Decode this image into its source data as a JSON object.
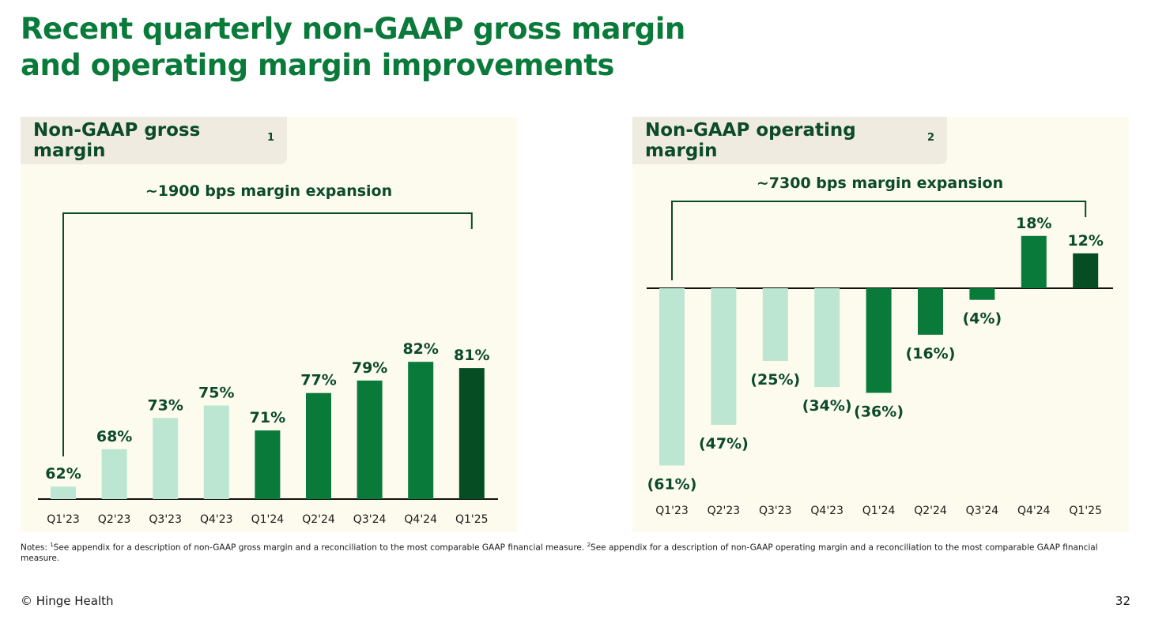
{
  "slide": {
    "title_line1": "Recent quarterly non-GAAP gross margin",
    "title_line2": "and operating margin improvements",
    "notes_prefix": "Notes: ",
    "note1_marker": "1",
    "note1_text": "See appendix for a description of non-GAAP gross margin and a reconciliation to the most comparable GAAP financial measure. ",
    "note2_marker": "2",
    "note2_text": "See appendix for a description of non-GAAP operating margin and a reconciliation to the most comparable GAAP financial measure.",
    "footer_brand": "© Hinge Health",
    "page_number": "32"
  },
  "colors": {
    "title": "#0a7a3a",
    "light": "#bde6d2",
    "medium": "#0a7a3a",
    "dark": "#064d24",
    "label": "#0b4a2a",
    "panel_bg": "#fdfbee"
  },
  "chart_data": [
    {
      "type": "bar",
      "title": "Non-GAAP gross margin",
      "title_sup": "1",
      "annotation": "~1900 bps margin expansion",
      "categories": [
        "Q1'23",
        "Q2'23",
        "Q3'23",
        "Q4'23",
        "Q1'24",
        "Q2'24",
        "Q3'24",
        "Q4'24",
        "Q1'25"
      ],
      "values": [
        62,
        68,
        73,
        75,
        71,
        77,
        79,
        82,
        81
      ],
      "value_labels": [
        "62%",
        "68%",
        "73%",
        "75%",
        "71%",
        "77%",
        "79%",
        "82%",
        "81%"
      ],
      "shades": [
        "light",
        "light",
        "light",
        "light",
        "medium",
        "medium",
        "medium",
        "medium",
        "dark"
      ],
      "unit": "%"
    },
    {
      "type": "bar",
      "title": "Non-GAAP operating margin",
      "title_sup": "2",
      "annotation": "~7300 bps margin expansion",
      "categories": [
        "Q1'23",
        "Q2'23",
        "Q3'23",
        "Q4'23",
        "Q1'24",
        "Q2'24",
        "Q3'24",
        "Q4'24",
        "Q1'25"
      ],
      "values": [
        -61,
        -47,
        -25,
        -34,
        -36,
        -16,
        -4,
        18,
        12
      ],
      "value_labels": [
        "(61%)",
        "(47%)",
        "(25%)",
        "(34%)",
        "(36%)",
        "(16%)",
        "(4%)",
        "18%",
        "12%"
      ],
      "shades": [
        "light",
        "light",
        "light",
        "light",
        "medium",
        "medium",
        "medium",
        "medium",
        "dark"
      ],
      "unit": "%"
    }
  ]
}
